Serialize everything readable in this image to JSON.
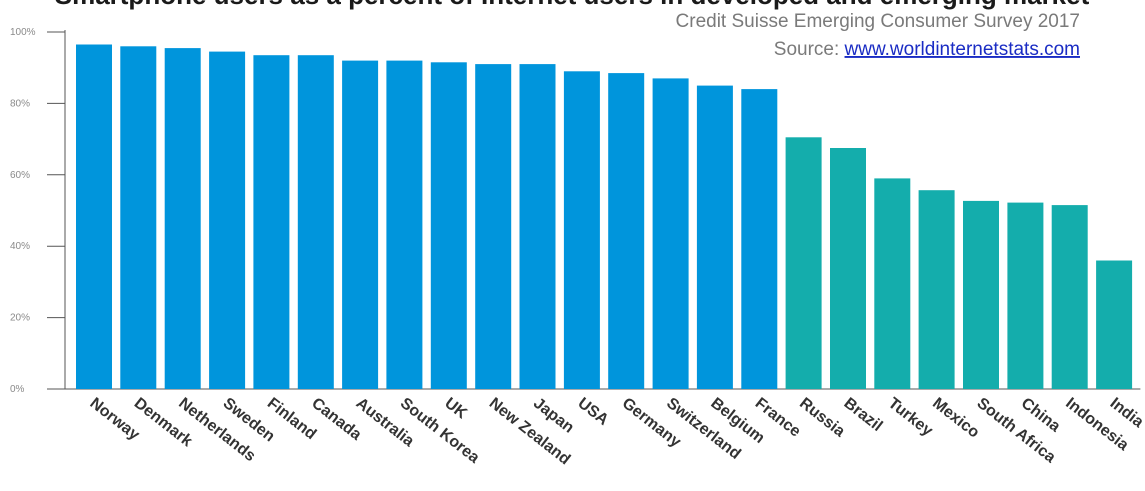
{
  "chart_data": {
    "type": "bar",
    "title": "Smartphone users as a percent of Internet users in developed and emerging market",
    "subtitle": "Credit Suisse Emerging Consumer Survey 2017",
    "source_prefix": "Source: ",
    "source_link": "www.worldinternetstats.com",
    "categories": [
      "Norway",
      "Denmark",
      "Netherlands",
      "Sweden",
      "Finland",
      "Canada",
      "Australia",
      "South Korea",
      "UK",
      "New Zealand",
      "Japan",
      "USA",
      "Germany",
      "Switzerland",
      "Belgium",
      "France",
      "Russia",
      "Brazil",
      "Turkey",
      "Mexico",
      "South Africa",
      "China",
      "Indonesia",
      "India"
    ],
    "values": [
      96.5,
      96,
      95.5,
      94.5,
      93.5,
      93.5,
      92,
      92,
      91.5,
      91,
      91,
      89,
      88.5,
      87,
      85,
      84,
      70.5,
      67.5,
      59,
      55.7,
      52.7,
      52.2,
      51.5,
      36
    ],
    "groups": [
      "developed",
      "developed",
      "developed",
      "developed",
      "developed",
      "developed",
      "developed",
      "developed",
      "developed",
      "developed",
      "developed",
      "developed",
      "developed",
      "developed",
      "developed",
      "developed",
      "emerging",
      "emerging",
      "emerging",
      "emerging",
      "emerging",
      "emerging",
      "emerging",
      "emerging"
    ],
    "colors": {
      "developed": "#0095dc",
      "emerging": "#14adac",
      "axis": "#555555"
    },
    "yticks": [
      "0%",
      "20%",
      "40%",
      "60%",
      "80%",
      "100%"
    ],
    "ylim": [
      0,
      100
    ],
    "grid": false
  }
}
